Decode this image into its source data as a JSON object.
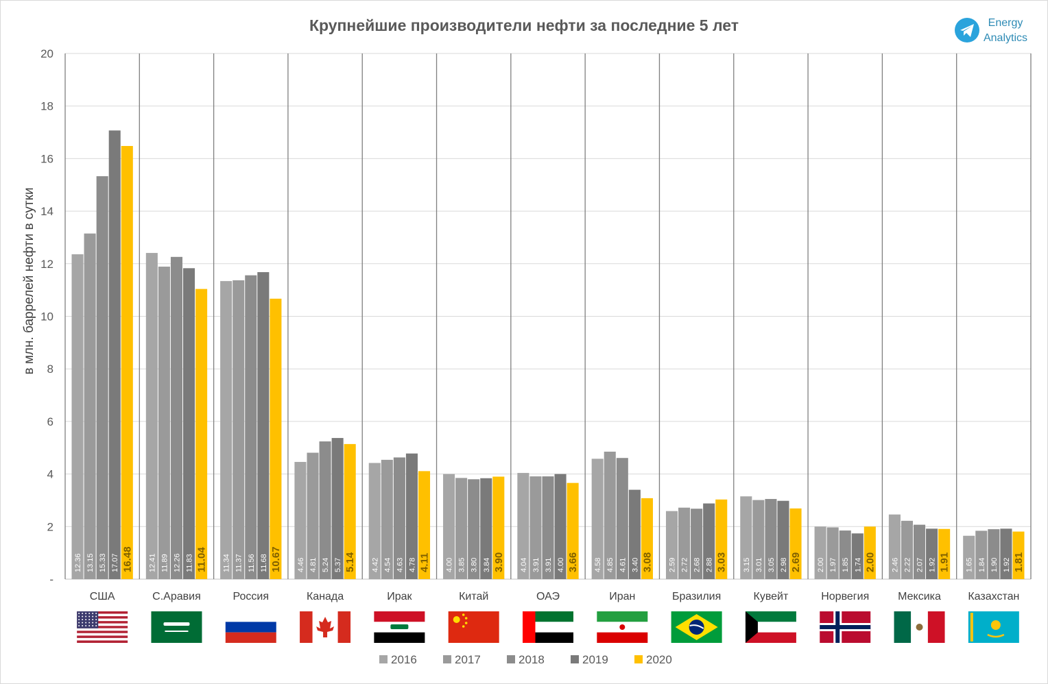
{
  "brand": {
    "line1": "Energy",
    "line2": "Analytics",
    "icon": "telegram-icon",
    "color": "#2aa3dc"
  },
  "chart_data": {
    "type": "bar",
    "title": "Крупнейшие производители нефти за последние 5 лет",
    "ylabel": "в  млн. баррелей  нефти  в  сутки",
    "xlabel": "",
    "ylim": [
      0,
      20
    ],
    "yticks": [
      "-",
      "2",
      "4",
      "6",
      "8",
      "10",
      "12",
      "14",
      "16",
      "18",
      "20"
    ],
    "grid": true,
    "legend_position": "bottom",
    "categories": [
      "США",
      "С.Аравия",
      "Россия",
      "Канада",
      "Ирак",
      "Китай",
      "ОАЭ",
      "Иран",
      "Бразилия",
      "Кувейт",
      "Норвегия",
      "Мексика",
      "Казахстан"
    ],
    "flags": [
      "us-flag-icon",
      "saudi-arabia-flag-icon",
      "russia-flag-icon",
      "canada-flag-icon",
      "iraq-flag-icon",
      "china-flag-icon",
      "uae-flag-icon",
      "iran-flag-icon",
      "brazil-flag-icon",
      "kuwait-flag-icon",
      "norway-flag-icon",
      "mexico-flag-icon",
      "kazakhstan-flag-icon"
    ],
    "series": [
      {
        "name": "2016",
        "color": "#a6a6a6",
        "values": [
          12.36,
          12.41,
          11.34,
          4.46,
          4.42,
          4.0,
          4.04,
          4.58,
          2.59,
          3.15,
          2.0,
          2.46,
          1.65
        ],
        "labels": [
          "12.36",
          "12.41",
          "11.34",
          "4.46",
          "4.42",
          "4.00",
          "4.04",
          "4.58",
          "2.59",
          "3.15",
          "2.00",
          "2.46",
          "1.65"
        ]
      },
      {
        "name": "2017",
        "color": "#9a9a9a",
        "values": [
          13.15,
          11.89,
          11.37,
          4.81,
          4.54,
          3.85,
          3.91,
          4.85,
          2.72,
          3.01,
          1.97,
          2.22,
          1.84
        ],
        "labels": [
          "13.15",
          "11.89",
          "11.37",
          "4.81",
          "4.54",
          "3.85",
          "3.91",
          "4.85",
          "2.72",
          "3.01",
          "1.97",
          "2.22",
          "1.84"
        ]
      },
      {
        "name": "2018",
        "color": "#8c8c8c",
        "values": [
          15.33,
          12.26,
          11.56,
          5.24,
          4.63,
          3.8,
          3.91,
          4.61,
          2.68,
          3.05,
          1.85,
          2.07,
          1.9
        ],
        "labels": [
          "15.33",
          "12.26",
          "11.56",
          "5.24",
          "4.63",
          "3.80",
          "3.91",
          "4.61",
          "2.68",
          "3.05",
          "1.85",
          "2.07",
          "1.90"
        ]
      },
      {
        "name": "2019",
        "color": "#7a7a7a",
        "values": [
          17.07,
          11.83,
          11.68,
          5.37,
          4.78,
          3.84,
          4.0,
          3.4,
          2.88,
          2.98,
          1.74,
          1.92,
          1.92
        ],
        "labels": [
          "17.07",
          "11.83",
          "11.68",
          "5.37",
          "4.78",
          "3.84",
          "4.00",
          "3.40",
          "2.88",
          "2.98",
          "1.74",
          "1.92",
          "1.92"
        ]
      },
      {
        "name": "2020",
        "color": "#ffc000",
        "values": [
          16.48,
          11.04,
          10.67,
          5.14,
          4.11,
          3.9,
          3.66,
          3.08,
          3.03,
          2.69,
          2.0,
          1.91,
          1.81
        ],
        "labels": [
          "16.48",
          "11.04",
          "10.67",
          "5.14",
          "4.11",
          "3.90",
          "3.66",
          "3.08",
          "3.03",
          "2.69",
          "2.00",
          "1.91",
          "1.81"
        ]
      }
    ]
  }
}
